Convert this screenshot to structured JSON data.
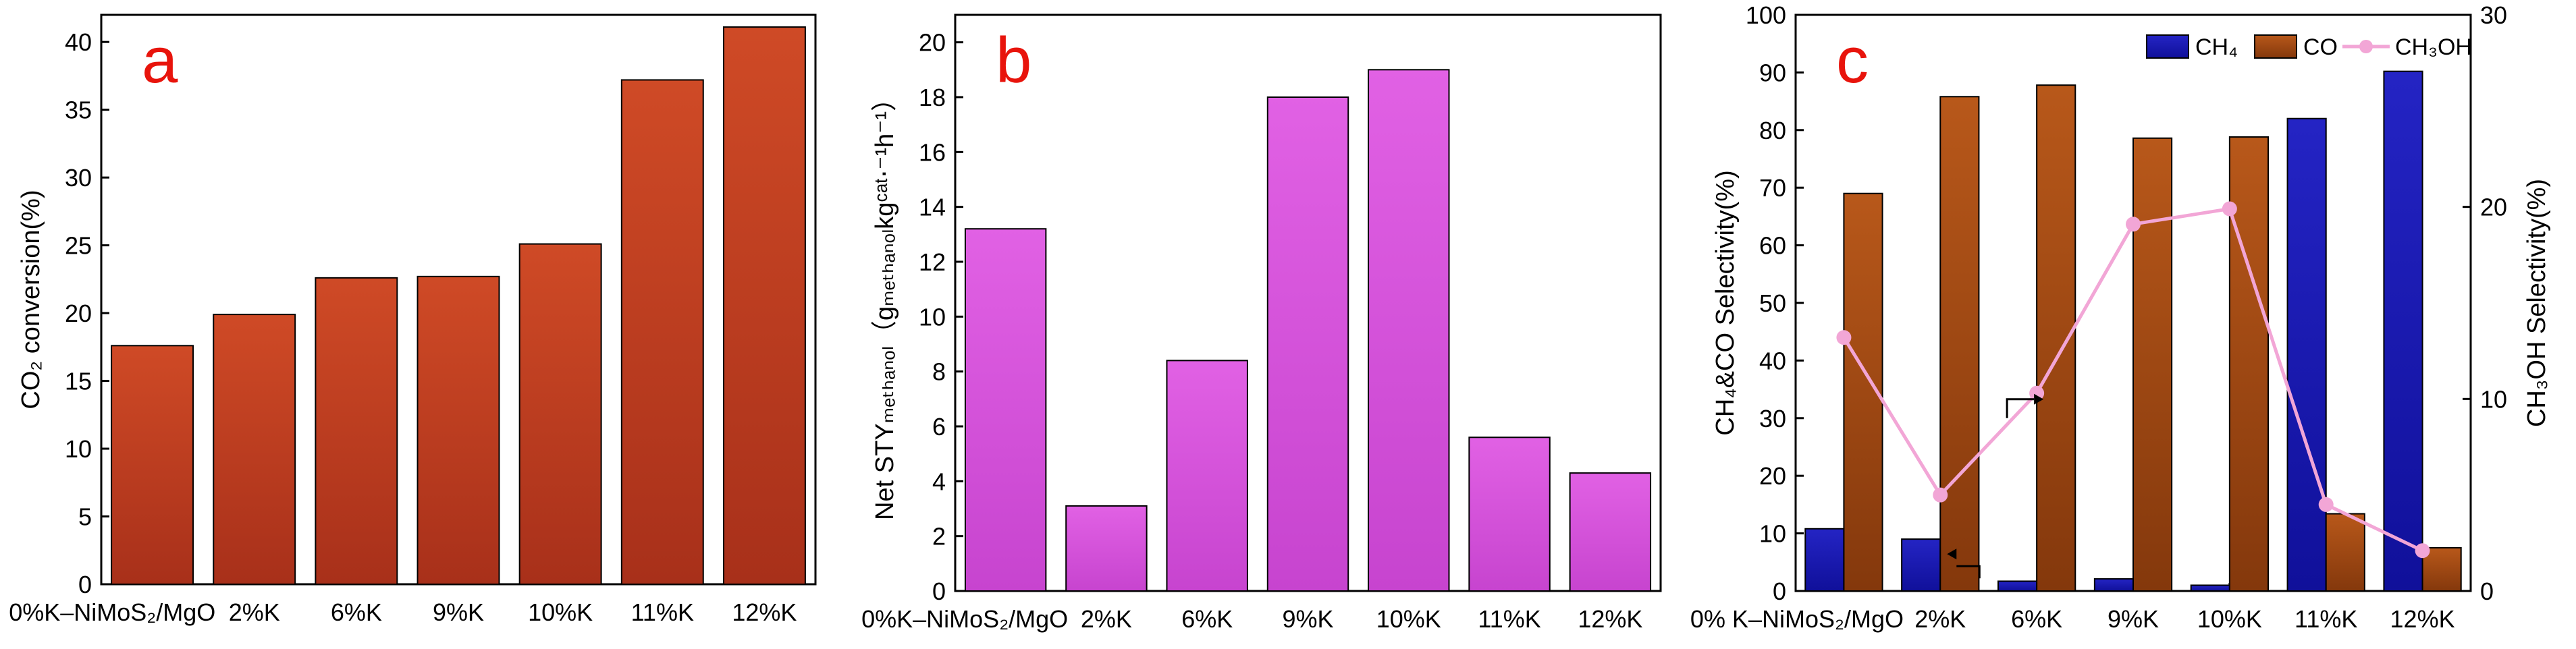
{
  "chart_data": [
    {
      "panel_letter": "a",
      "type": "bar",
      "categories": [
        "0%K–NiMoS₂/MgO",
        "2%K",
        "6%K",
        "9%K",
        "10%K",
        "11%K",
        "12%K"
      ],
      "values": [
        17.6,
        19.9,
        22.6,
        22.7,
        25.1,
        37.2,
        41.1
      ],
      "ylabel": "CO₂ conversion(%)",
      "ylim": [
        0,
        42
      ],
      "yticks": [
        0,
        5,
        10,
        15,
        20,
        25,
        30,
        35,
        40
      ],
      "color": "#c0391b"
    },
    {
      "panel_letter": "b",
      "type": "bar",
      "categories": [
        "0%K–NiMoS₂/MgO",
        "2%K",
        "6%K",
        "9%K",
        "10%K",
        "11%K",
        "12%K"
      ],
      "values": [
        13.2,
        3.1,
        8.4,
        18.0,
        19.0,
        5.6,
        4.3
      ],
      "ylabel": "Net STYₘₑₜₕₐₙₒₗ（gₘₑₜₕₐₙₒₗkgᶜᵃᵗ⋅⁻¹h⁻¹）",
      "ylim": [
        0,
        21
      ],
      "yticks": [
        0,
        2,
        4,
        6,
        8,
        10,
        12,
        14,
        16,
        18,
        20
      ],
      "color": "#d957df"
    },
    {
      "panel_letter": "c",
      "type": "bar",
      "categories": [
        "0% K–NiMoS₂/MgO",
        "2%K",
        "6%K",
        "9%K",
        "10%K",
        "11%K",
        "12%K"
      ],
      "series": [
        {
          "name": "CH₄",
          "values": [
            10.8,
            9.0,
            1.7,
            2.1,
            1.0,
            82.0,
            90.2
          ],
          "color": "#1a1ab0",
          "axis": "left"
        },
        {
          "name": "CO",
          "values": [
            69.0,
            85.8,
            87.8,
            78.6,
            78.8,
            13.4,
            7.5
          ],
          "color": "#a84a10",
          "axis": "left"
        },
        {
          "name": "CH₃OH",
          "values": [
            13.2,
            5.0,
            10.3,
            19.1,
            19.9,
            4.5,
            2.1
          ],
          "color": "#f2a6d6",
          "axis": "right",
          "type": "line"
        }
      ],
      "ylabel": "CH₄&CO Selectivity(%)",
      "ylabel_right": "CH₃OH Selectivity(%)",
      "ylim": [
        0,
        100
      ],
      "ylim_right": [
        0,
        30
      ],
      "yticks": [
        0,
        10,
        20,
        30,
        40,
        50,
        60,
        70,
        80,
        90,
        100
      ],
      "yticks_right": [
        0,
        10,
        20,
        30
      ],
      "legend_position": "top-right"
    }
  ]
}
